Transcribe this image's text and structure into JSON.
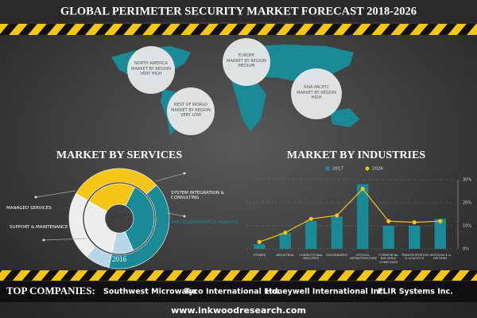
{
  "header": {
    "title": "GLOBAL PERIMETER SECURITY MARKET FORECAST 2018-2026"
  },
  "regions": [
    {
      "name": "NORTH AMERICA",
      "label": "MARKET BY REGION",
      "level": "VERY HIGH"
    },
    {
      "name": "EUROPE",
      "label": "MARKET BY REGION",
      "level": "MEDIUM"
    },
    {
      "name": "ASIA PACIFIC",
      "label": "MARKET BY REGION",
      "level": "HIGH"
    },
    {
      "name": "REST OF WORLD",
      "label": "MARKET BY REGION",
      "level": "VERY LOW"
    }
  ],
  "chart_data": [
    {
      "type": "pie",
      "title": "MARKET BY SERVICES",
      "categories": [
        "SYSTEM INTEGRATION & CONSULTING",
        "RISK ASSESSMENT & ANALYSIS",
        "SUPPORT & MAINTENANCE",
        "MANAGED SERVICES"
      ],
      "colors": [
        "#f5c518",
        "#1a8a96",
        "#b7d7e8",
        "#eeeeee"
      ],
      "series": [
        {
          "name": "2017",
          "values": [
            24,
            36,
            10,
            30
          ]
        },
        {
          "name": "2016",
          "values": [
            30,
            40,
            8,
            22
          ]
        }
      ]
    },
    {
      "type": "bar",
      "title": "MARKET BY INDUSTRIES",
      "categories": [
        "OTHERS",
        "INDUSTRIAL",
        "CORRECTIONAL FACILITIES",
        "GOVERNMENT",
        "CRITICAL INFRASTRUCTURE",
        "COMMERCIAL BUILDING/ COMPLEXES",
        "TRANSPORTATION & LOGISTICS",
        "AEROSPACE & DEFENSE"
      ],
      "series": [
        {
          "name": "2017",
          "type": "bar",
          "color": "#1a8a96",
          "values": [
            2,
            7,
            12,
            14,
            28,
            10,
            10,
            13
          ]
        },
        {
          "name": "2026",
          "type": "line",
          "color": "#f5c518",
          "values": [
            3,
            7,
            13,
            14.5,
            26,
            12,
            11.5,
            12
          ]
        }
      ],
      "ylim": [
        0,
        30
      ],
      "yticks": [
        {
          "value": 0,
          "label": "0%"
        },
        {
          "value": 10,
          "label": "10%"
        },
        {
          "value": 20,
          "label": "20%"
        },
        {
          "value": 30,
          "label": "30%"
        }
      ],
      "grid": true
    }
  ],
  "companies": {
    "title": "TOP COMPANIES:",
    "names": [
      "Southwest Microwave",
      "Tyco International Ltd.",
      "Honeywell International Inc.",
      "FLIR Systems Inc."
    ]
  },
  "footer": {
    "url": "www.inkwoodresearch.com"
  }
}
